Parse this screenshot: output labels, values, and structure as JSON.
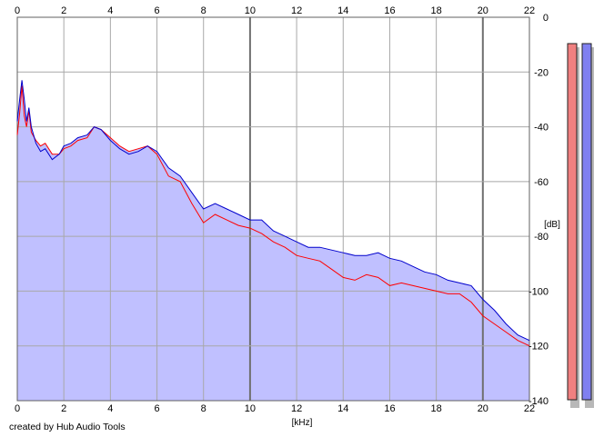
{
  "chart_data": {
    "type": "area",
    "xlabel": "[kHz]",
    "ylabel": "[dB]",
    "xlim": [
      0,
      22
    ],
    "ylim": [
      -140,
      0
    ],
    "x_ticks": [
      0,
      2,
      4,
      6,
      8,
      10,
      12,
      14,
      16,
      18,
      20,
      22
    ],
    "x_tick_labels": [
      "0",
      "2",
      "4",
      "6",
      "8",
      "10",
      "12",
      "14",
      "16",
      "18",
      "20",
      "22"
    ],
    "y_ticks": [
      0,
      -20,
      -40,
      -60,
      -80,
      -100,
      -120,
      -140
    ],
    "y_tick_labels": [
      "0",
      "-20",
      "-40",
      "-60",
      "-80",
      "-100",
      "-120",
      "-140"
    ],
    "grid": true,
    "fill_color": "#c0c0ff",
    "grid_color": "#a8a8a8",
    "series": [
      {
        "color": "#ff0000",
        "x": [
          0,
          0.1,
          0.2,
          0.3,
          0.4,
          0.5,
          0.6,
          0.8,
          1.0,
          1.2,
          1.5,
          1.8,
          2.0,
          2.3,
          2.6,
          3.0,
          3.3,
          3.6,
          4.0,
          4.4,
          4.8,
          5.2,
          5.6,
          6.0,
          6.5,
          7.0,
          7.5,
          8.0,
          8.5,
          9.0,
          9.5,
          10.0,
          10.5,
          11.0,
          11.5,
          12.0,
          12.5,
          13.0,
          13.5,
          14.0,
          14.5,
          15.0,
          15.5,
          16.0,
          16.5,
          17.0,
          17.5,
          18.0,
          18.5,
          19.0,
          19.5,
          20.0,
          20.5,
          21.0,
          21.5,
          22.0
        ],
        "values": [
          -43,
          -35,
          -25,
          -36,
          -40,
          -34,
          -42,
          -45,
          -47,
          -46,
          -50,
          -50,
          -48,
          -47,
          -45,
          -44,
          -40,
          -41,
          -44,
          -47,
          -49,
          -48,
          -47,
          -50,
          -58,
          -60,
          -68,
          -75,
          -72,
          -74,
          -76,
          -77,
          -79,
          -82,
          -84,
          -87,
          -88,
          -89,
          -92,
          -95,
          -96,
          -94,
          -95,
          -98,
          -97,
          -98,
          -99,
          -100,
          -101,
          -101,
          -104,
          -109,
          -112,
          -115,
          -118,
          -120
        ]
      },
      {
        "color": "#0000cc",
        "x": [
          0,
          0.1,
          0.2,
          0.3,
          0.4,
          0.5,
          0.6,
          0.8,
          1.0,
          1.2,
          1.5,
          1.8,
          2.0,
          2.3,
          2.6,
          3.0,
          3.3,
          3.6,
          4.0,
          4.4,
          4.8,
          5.2,
          5.6,
          6.0,
          6.5,
          7.0,
          7.5,
          8.0,
          8.5,
          9.0,
          9.5,
          10.0,
          10.5,
          11.0,
          11.5,
          12.0,
          12.5,
          13.0,
          13.5,
          14.0,
          14.5,
          15.0,
          15.5,
          16.0,
          16.5,
          17.0,
          17.5,
          18.0,
          18.5,
          19.0,
          19.5,
          20.0,
          20.5,
          21.0,
          21.5,
          22.0
        ],
        "values": [
          -38,
          -30,
          -23,
          -30,
          -38,
          -33,
          -40,
          -46,
          -49,
          -48,
          -52,
          -50,
          -47,
          -46,
          -44,
          -43,
          -40,
          -41,
          -45,
          -48,
          -50,
          -49,
          -47,
          -49,
          -55,
          -58,
          -64,
          -70,
          -68,
          -70,
          -72,
          -74,
          -74,
          -78,
          -80,
          -82,
          -84,
          -84,
          -85,
          -86,
          -87,
          -87,
          -86,
          -88,
          -89,
          -91,
          -93,
          -94,
          -96,
          -97,
          -98,
          -103,
          -107,
          -112,
          -116,
          -118
        ]
      }
    ],
    "level_meters": [
      {
        "color": "#f08080"
      },
      {
        "color": "#8080f0"
      }
    ]
  },
  "footer": {
    "credit": "created by Hub Audio Tools"
  }
}
